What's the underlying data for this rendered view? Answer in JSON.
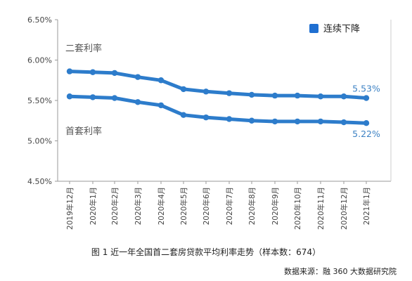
{
  "chart_data": {
    "type": "line",
    "title": "",
    "xlabel": "",
    "ylabel": "",
    "categories": [
      "2019年12月",
      "2020年1月",
      "2020年2月",
      "2020年3月",
      "2020年4月",
      "2020年5月",
      "2020年6月",
      "2020年7月",
      "2020年8月",
      "2020年9月",
      "2020年10月",
      "2020年11月",
      "2020年12月",
      "2021年1月"
    ],
    "y_ticks": [
      "6.50%",
      "6.00%",
      "5.50%",
      "5.00%",
      "4.50%"
    ],
    "y_tick_values": [
      6.5,
      6.0,
      5.5,
      5.0,
      4.5
    ],
    "ylim": [
      4.5,
      6.5
    ],
    "series": [
      {
        "name": "二套利率",
        "values": [
          5.86,
          5.85,
          5.84,
          5.79,
          5.75,
          5.64,
          5.61,
          5.59,
          5.57,
          5.56,
          5.56,
          5.55,
          5.55,
          5.53
        ],
        "end_label": "5.53%"
      },
      {
        "name": "首套利率",
        "values": [
          5.55,
          5.54,
          5.53,
          5.48,
          5.44,
          5.32,
          5.29,
          5.27,
          5.25,
          5.24,
          5.24,
          5.24,
          5.23,
          5.22
        ],
        "end_label": "5.22%"
      }
    ],
    "legend": {
      "label": "连续下降",
      "placement": "top-right"
    },
    "grid": false,
    "colors": {
      "line": "#2d7ccb",
      "end_label": "#3d82c4",
      "axis": "#999999"
    }
  },
  "caption": "图 1 近一年全国首二套房贷款平均利率走势（样本数：674）",
  "source": "数据来源：融 360 大数据研究院"
}
